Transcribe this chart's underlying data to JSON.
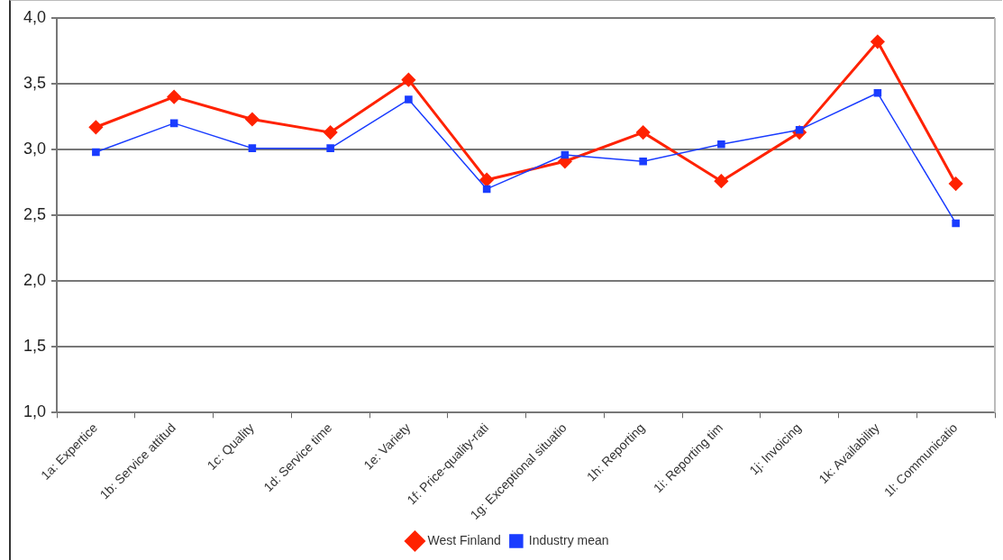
{
  "chart_data": {
    "type": "line",
    "categories": [
      "1a: Expertice",
      "1b: Service attitud",
      "1c: Quality",
      "1d: Service time",
      "1e: Variety",
      "1f: Price-quality-rati",
      "1g: Exceptional situatio",
      "1h: Reporting",
      "1i: Reporting tim",
      "1j: Invoicing",
      "1k: Availability",
      "1l: Communicatio"
    ],
    "series": [
      {
        "name": "West Finland",
        "color": "#ff2200",
        "marker": "diamond",
        "values": [
          3.17,
          3.4,
          3.23,
          3.13,
          3.53,
          2.77,
          2.91,
          3.13,
          2.76,
          3.13,
          3.82,
          2.74
        ]
      },
      {
        "name": "Industry mean",
        "color": "#1a3cff",
        "marker": "square",
        "values": [
          2.98,
          3.2,
          3.01,
          3.01,
          3.38,
          2.7,
          2.96,
          2.91,
          3.04,
          3.15,
          3.43,
          2.44
        ]
      }
    ],
    "ylim": [
      1,
      4
    ],
    "yticks": [
      {
        "value": 1,
        "label": "1,0"
      },
      {
        "value": 1.5,
        "label": "1,5"
      },
      {
        "value": 2,
        "label": "2,0"
      },
      {
        "value": 2.5,
        "label": "2,5"
      },
      {
        "value": 3,
        "label": "3,0"
      },
      {
        "value": 3.5,
        "label": "3,5"
      },
      {
        "value": 4,
        "label": "4,0"
      }
    ],
    "grid": "y",
    "legend": "bottom",
    "line_style": "solid"
  }
}
